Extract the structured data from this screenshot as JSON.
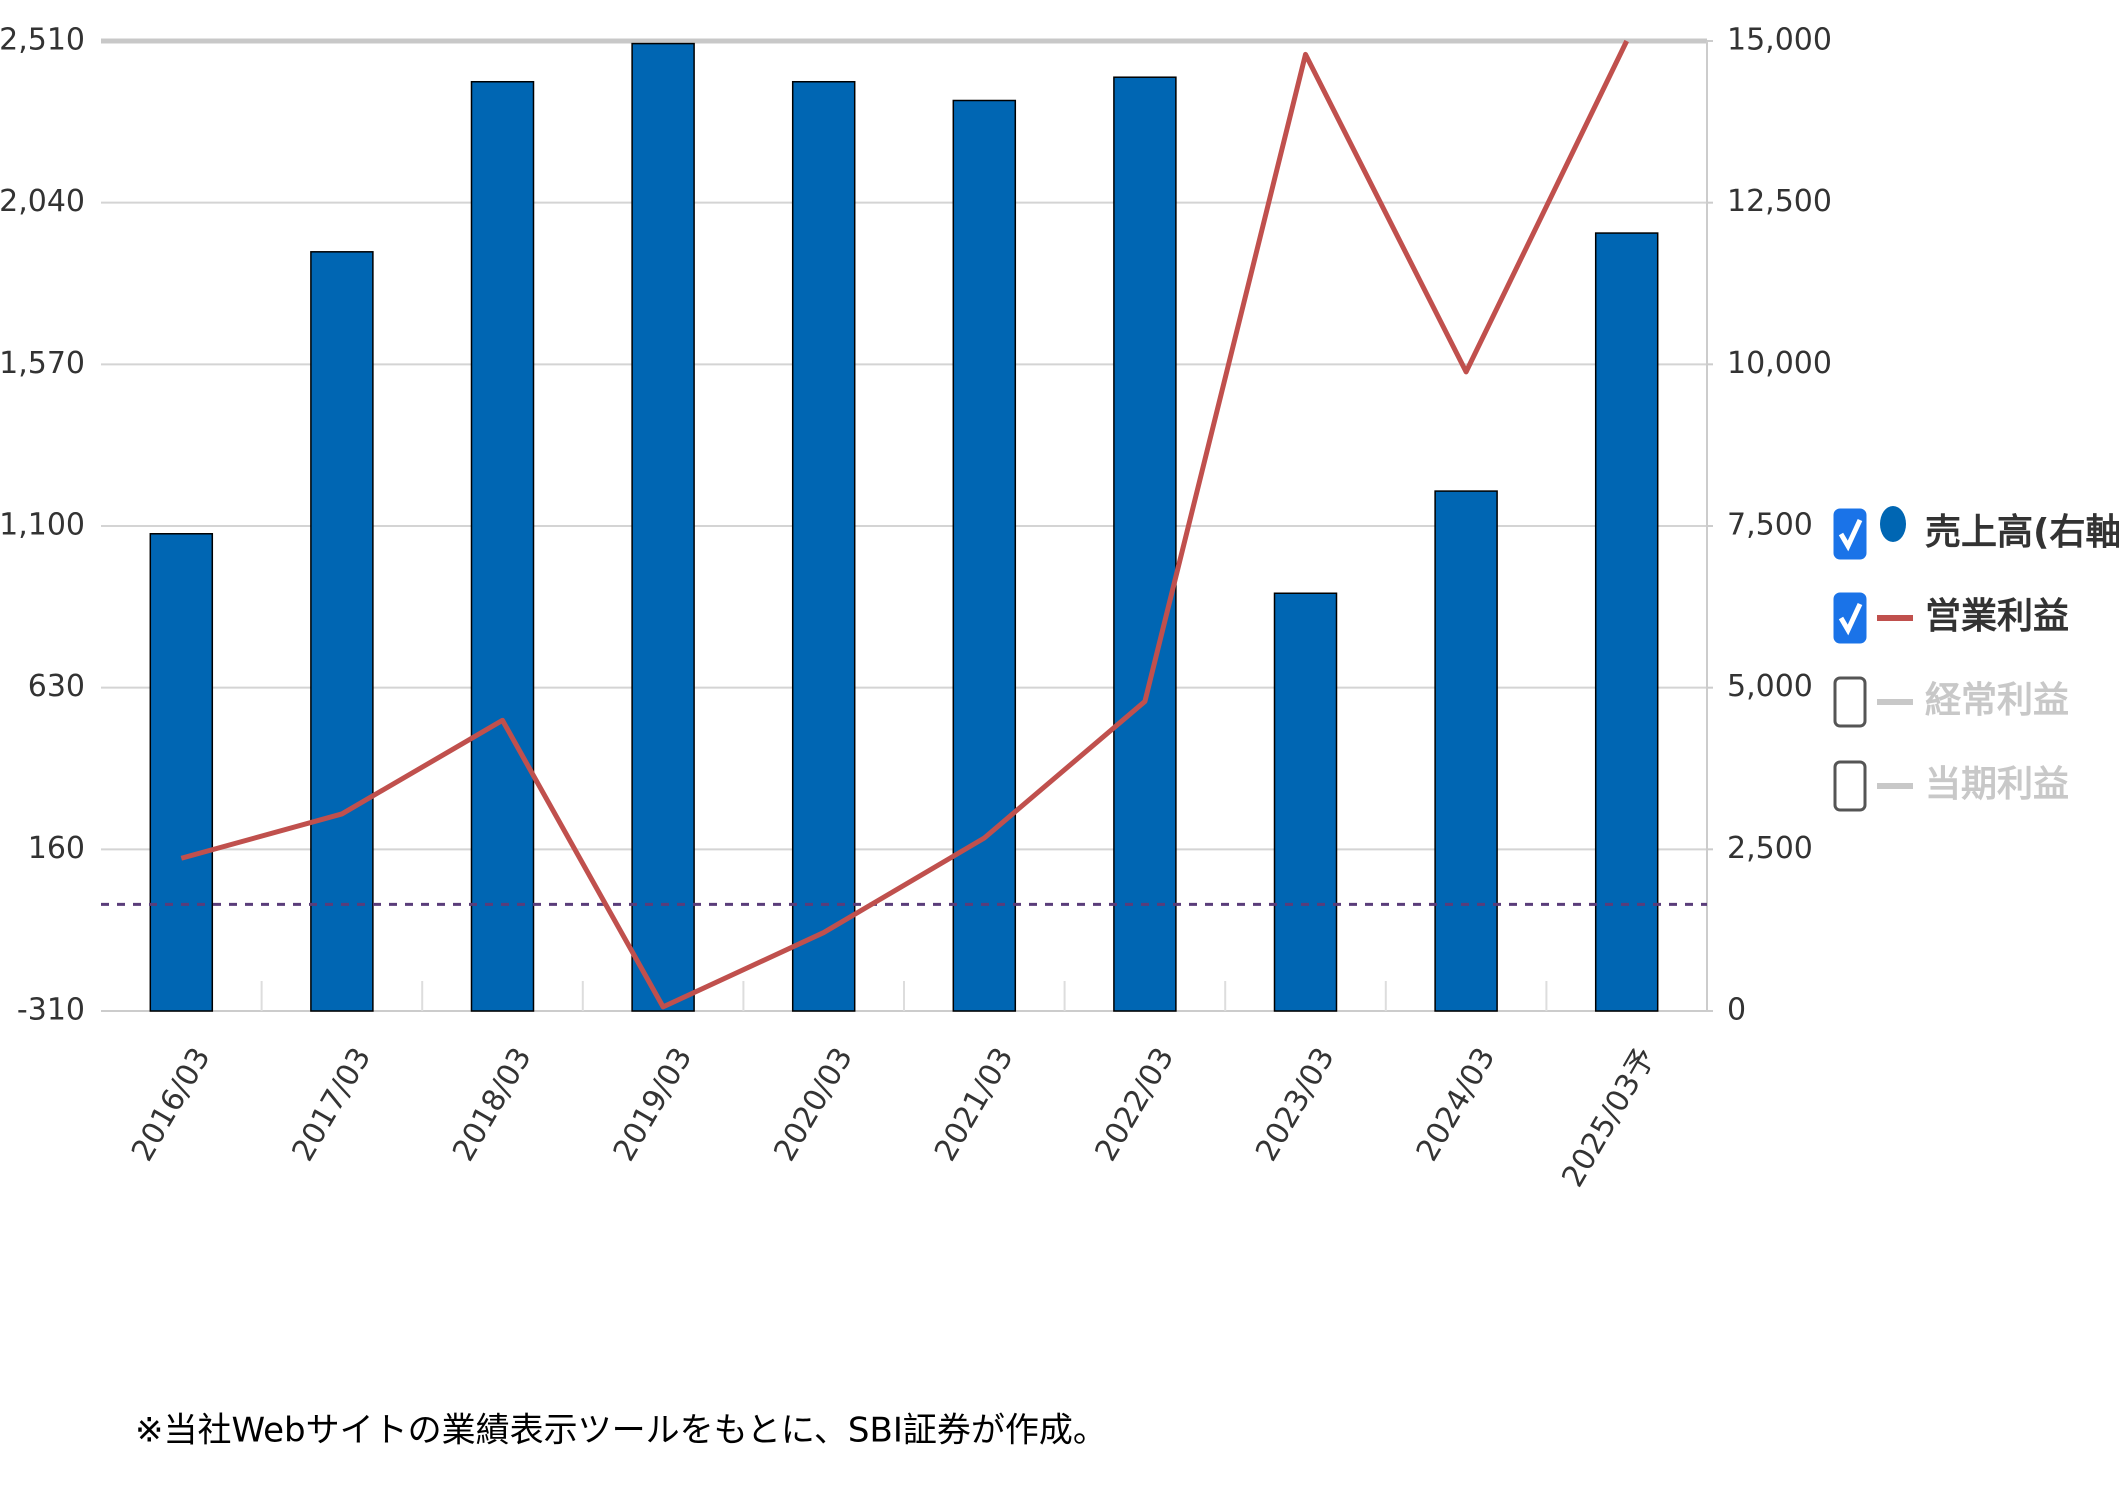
{
  "chart_data": {
    "type": "bar_line",
    "categories": [
      "2016/03",
      "2017/03",
      "2018/03",
      "2019/03",
      "2020/03",
      "2021/03",
      "2022/03",
      "2023/03",
      "2024/03",
      "2025/03予"
    ],
    "series": [
      {
        "name": "売上高(右軸)",
        "type": "bar",
        "axis": "y2",
        "color": "#0066b3",
        "checked": true,
        "values": [
          7380,
          11740,
          14370,
          14960,
          14370,
          14080,
          14440,
          6460,
          8040,
          12030
        ]
      },
      {
        "name": "営業利益",
        "type": "line",
        "axis": "y",
        "color": "#c0504d",
        "checked": true,
        "values": [
          134,
          263,
          535,
          -298,
          -82,
          193,
          590,
          2471,
          1548,
          2510
        ]
      }
    ],
    "inactive_series": [
      {
        "name": "経常利益",
        "color": "#c8c8c8",
        "checked": false
      },
      {
        "name": "当期利益",
        "color": "#c8c8c8",
        "checked": false
      }
    ],
    "ylim": [
      -310,
      2510
    ],
    "yticks": [
      -310,
      160,
      630,
      {
        "value": 1100,
        "label": "1,100"
      },
      {
        "value": 1570,
        "label": "1,570"
      },
      {
        "value": 2040,
        "label": "2,040"
      },
      {
        "value": 2510,
        "label": "2,510"
      }
    ],
    "y2lim": [
      0,
      15000
    ],
    "y2ticks": [
      0,
      {
        "value": 2500,
        "label": "2,500"
      },
      {
        "value": 5000,
        "label": "5,000"
      },
      {
        "value": 7500,
        "label": "7,500"
      },
      {
        "value": 10000,
        "label": "10,000"
      },
      {
        "value": 12500,
        "label": "12,500"
      },
      {
        "value": 15000,
        "label": "15,000"
      }
    ],
    "reference_line": 0,
    "grid": true,
    "legend": "right"
  },
  "footnote": "※当社Webサイトの業績表示ツールをもとに、SBI証券が作成。"
}
